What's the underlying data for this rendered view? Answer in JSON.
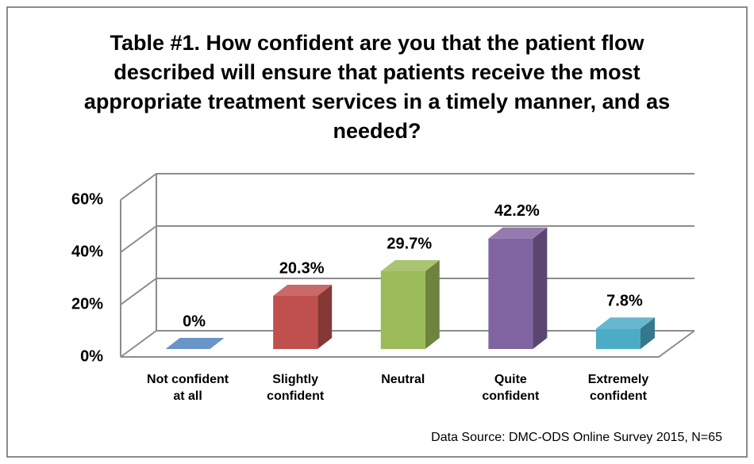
{
  "chart_data": {
    "type": "bar3d",
    "title": "Table #1. How confident are you that the patient flow described will ensure that patients receive the most appropriate treatment services in a timely manner, and as needed?",
    "categories": [
      "Not confident at all",
      "Slightly confident",
      "Neutral",
      "Quite confident",
      "Extremely confident"
    ],
    "values": [
      0,
      20.3,
      29.7,
      42.2,
      7.8
    ],
    "value_labels": [
      "0%",
      "20.3%",
      "29.7%",
      "42.2%",
      "7.8%"
    ],
    "colors": [
      "#4f81bd",
      "#c0504d",
      "#9bbb59",
      "#8064a2",
      "#4bacc6"
    ],
    "ylim": [
      0,
      60
    ],
    "yticks": [
      {
        "value": 0,
        "label": "0%"
      },
      {
        "value": 20,
        "label": "20%"
      },
      {
        "value": 40,
        "label": "40%"
      },
      {
        "value": 60,
        "label": "60%"
      }
    ],
    "grid": true,
    "source": "Data Source: DMC-ODS Online Survey 2015, N=65"
  }
}
